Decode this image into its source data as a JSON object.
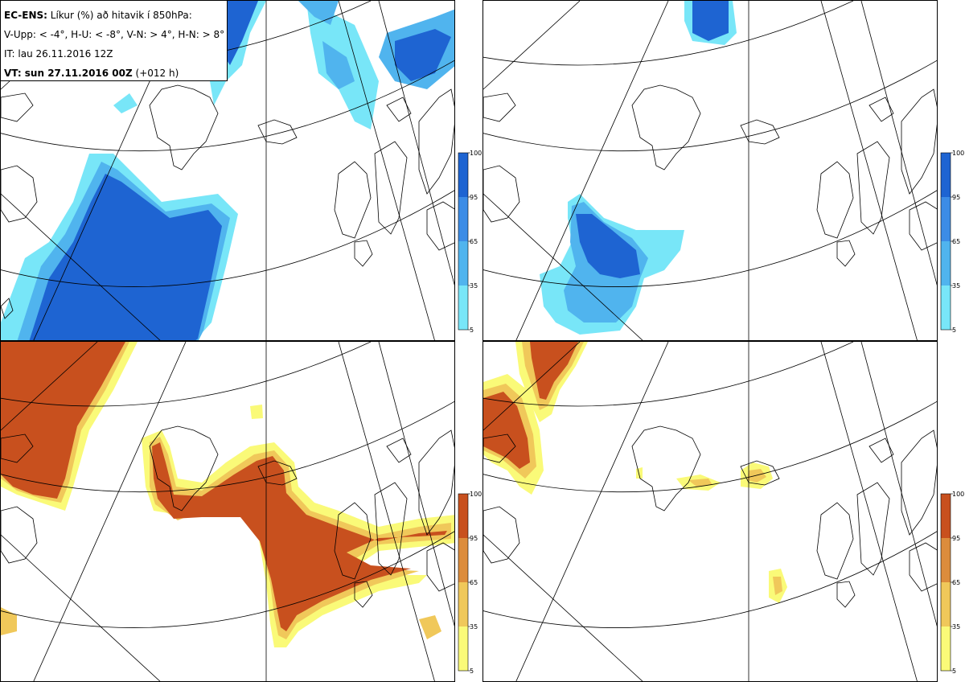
{
  "header": {
    "line1_bold": "EC-ENS:",
    "line1_rest": " Líkur (%) að hitavik í 850hPa:",
    "line2": "V-Upp: < -4°, H-U: < -8°, V-N: > 4°, H-N: > 8°",
    "line3": "IT: lau 26.11.2016 12Z",
    "line4_bold": "VT: sun 27.11.2016 00Z",
    "line4_rest": " (+012 h)"
  },
  "colorbars": {
    "top": {
      "ticks": [
        "100",
        "95",
        "65",
        "35",
        "5"
      ],
      "colors": [
        "#1e64d2",
        "#3c8ce6",
        "#50b4ee",
        "#78e6f8"
      ]
    },
    "bottom": {
      "ticks": [
        "100",
        "95",
        "65",
        "35",
        "5"
      ],
      "colors": [
        "#c8501e",
        "#dc8c3c",
        "#f0c85a",
        "#fafa78"
      ]
    }
  },
  "panels": [
    {
      "id": "p-tl",
      "name": "panel-cold-4"
    },
    {
      "id": "p-tr",
      "name": "panel-cold-8"
    },
    {
      "id": "p-bl",
      "name": "panel-warm-4"
    },
    {
      "id": "p-br",
      "name": "panel-warm-8"
    }
  ]
}
